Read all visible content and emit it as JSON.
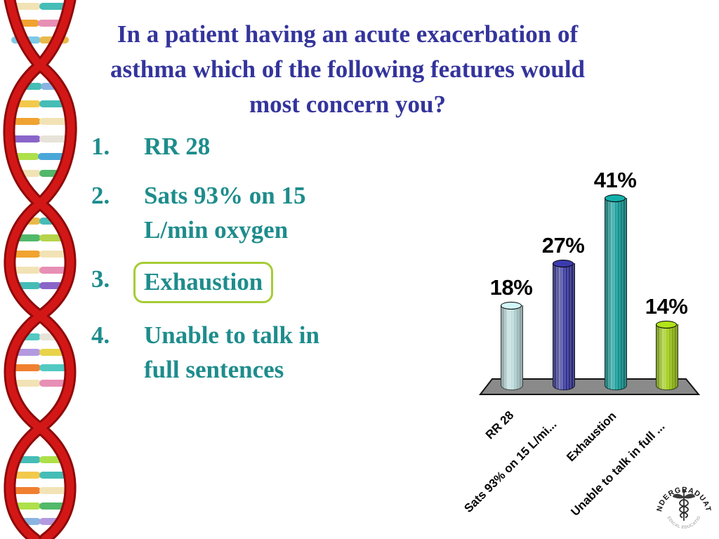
{
  "slide_title": {
    "lines": [
      "In a patient having an acute exacerbation of",
      "asthma which of the following features would",
      "most concern you?"
    ],
    "color": "#34349c"
  },
  "options": {
    "color": "#1e8c8c",
    "highlight_box_color": "#a6cc35",
    "items": [
      {
        "number": "1.",
        "text": "RR 28",
        "lines": [
          "RR 28"
        ],
        "highlighted": false
      },
      {
        "number": "2.",
        "text": "Sats 93% on 15 L/min oxygen",
        "lines": [
          "Sats 93% on 15",
          "L/min oxygen"
        ],
        "highlighted": false
      },
      {
        "number": "3.",
        "text": "Exhaustion",
        "lines": [
          "Exhaustion"
        ],
        "highlighted": true
      },
      {
        "number": "4.",
        "text": "Unable to talk in full sentences",
        "lines": [
          "Unable to talk in",
          "full sentences"
        ],
        "highlighted": false
      }
    ]
  },
  "chart_data": {
    "type": "bar",
    "title": "",
    "xlabel": "",
    "ylabel": "",
    "categories": [
      "RR 28",
      "Sats 93% on 15 L/mi...",
      "Exhaustion",
      "Unable to talk in full ..."
    ],
    "values": [
      18,
      27,
      41,
      14
    ],
    "value_labels": [
      "18%",
      "27%",
      "41%",
      "14%"
    ],
    "bar_colors": [
      "#bcdcdd",
      "#35359b",
      "#129c98",
      "#9ecb16"
    ],
    "platform_color": "#8a8a8a",
    "label_color": "#000000",
    "category_label_rotation_deg": -45,
    "ylim": [
      0,
      45
    ],
    "grid": false,
    "legend": false
  },
  "logo": {
    "arc_text": "UNDERGRADUATE",
    "sub_text": "MEDICAL EDUCATION",
    "symbol": "caduceus-icon"
  }
}
